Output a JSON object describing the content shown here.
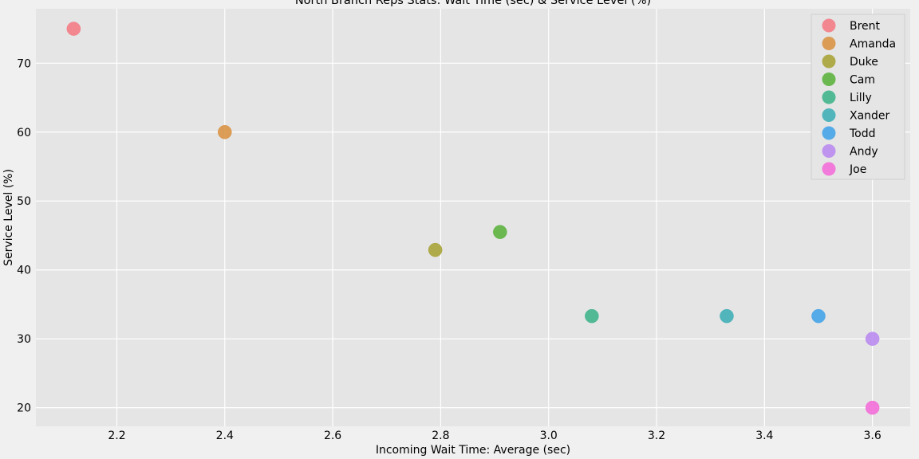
{
  "chart_data": {
    "type": "scatter",
    "title": "North Branch Reps Stats: Wait Time (sec) & Service Level (%)",
    "xlabel": "Incoming Wait Time: Average (sec)",
    "ylabel": "Service Level (%)",
    "xlim": [
      2.05,
      3.67
    ],
    "ylim": [
      17.3,
      77.9
    ],
    "xticks": [
      2.2,
      2.4,
      2.6,
      2.8,
      3.0,
      3.2,
      3.4,
      3.6
    ],
    "xtick_labels": [
      "2.2",
      "2.4",
      "2.6",
      "2.8",
      "3.0",
      "3.2",
      "3.4",
      "3.6"
    ],
    "yticks": [
      20,
      30,
      40,
      50,
      60,
      70
    ],
    "ytick_labels": [
      "20",
      "30",
      "40",
      "50",
      "60",
      "70"
    ],
    "grid": true,
    "legend_position": "top-right",
    "series": [
      {
        "name": "Brent",
        "color": "#f37c86",
        "points": [
          {
            "x": 2.12,
            "y": 75.0
          }
        ]
      },
      {
        "name": "Amanda",
        "color": "#d99446",
        "points": [
          {
            "x": 2.4,
            "y": 60.0
          }
        ]
      },
      {
        "name": "Duke",
        "color": "#a8a43a",
        "points": [
          {
            "x": 2.79,
            "y": 42.9
          }
        ]
      },
      {
        "name": "Cam",
        "color": "#5eb33f",
        "points": [
          {
            "x": 2.91,
            "y": 45.5
          }
        ]
      },
      {
        "name": "Lilly",
        "color": "#41b48c",
        "points": [
          {
            "x": 3.08,
            "y": 33.3
          }
        ]
      },
      {
        "name": "Xander",
        "color": "#40afb6",
        "points": [
          {
            "x": 3.33,
            "y": 33.3
          }
        ]
      },
      {
        "name": "Todd",
        "color": "#45a4e8",
        "points": [
          {
            "x": 3.5,
            "y": 33.3
          }
        ]
      },
      {
        "name": "Andy",
        "color": "#b98bef",
        "points": [
          {
            "x": 3.6,
            "y": 30.0
          }
        ]
      },
      {
        "name": "Joe",
        "color": "#f26ed8",
        "points": [
          {
            "x": 3.6,
            "y": 20.0
          }
        ]
      }
    ]
  }
}
